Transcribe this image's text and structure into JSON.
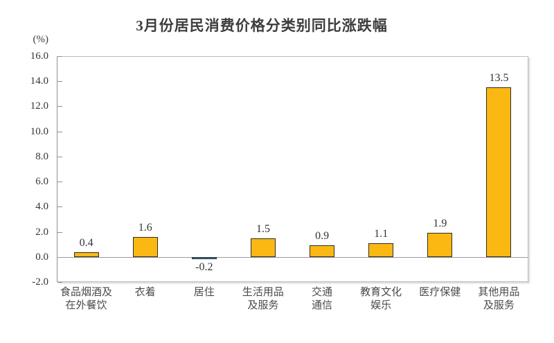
{
  "title": "3月份居民消费价格分类别同比涨跌幅",
  "y_axis": {
    "unit_label": "(%)",
    "tick_labels": [
      "16.0",
      "14.0",
      "12.0",
      "10.0",
      "8.0",
      "6.0",
      "4.0",
      "2.0",
      "0.0",
      "-2.0"
    ]
  },
  "chart_data": {
    "type": "bar",
    "title": "3月份居民消费价格分类别同比涨跌幅",
    "categories": [
      "食品烟酒及在外餐饮",
      "衣着",
      "居住",
      "生活用品及服务",
      "交通通信",
      "教育文化娱乐",
      "医疗保健",
      "其他用品及服务"
    ],
    "category_lines": [
      [
        "食品烟酒及",
        "在外餐饮"
      ],
      [
        "衣着"
      ],
      [
        "居住"
      ],
      [
        "生活用品",
        "及服务"
      ],
      [
        "交通",
        "通信"
      ],
      [
        "教育文化",
        "娱乐"
      ],
      [
        "医疗保健"
      ],
      [
        "其他用品",
        "及服务"
      ]
    ],
    "values": [
      0.4,
      1.6,
      -0.2,
      1.5,
      0.9,
      1.1,
      1.9,
      13.5
    ],
    "value_labels": [
      "0.4",
      "1.6",
      "-0.2",
      "1.5",
      "0.9",
      "1.1",
      "1.9",
      "13.5"
    ],
    "xlabel": "",
    "ylabel": "(%)",
    "ylim": [
      -2,
      16
    ],
    "ytick_step": 2,
    "grid": false,
    "legend": "none",
    "colors": {
      "positive_bar": "#FBB812",
      "negative_bar": "#2E86B2",
      "bar_border": "#2B2B2B",
      "axis_frame": "#BDBDBD",
      "zero_line": "#9A9A9A",
      "title_text": "#3D3D3D"
    }
  }
}
